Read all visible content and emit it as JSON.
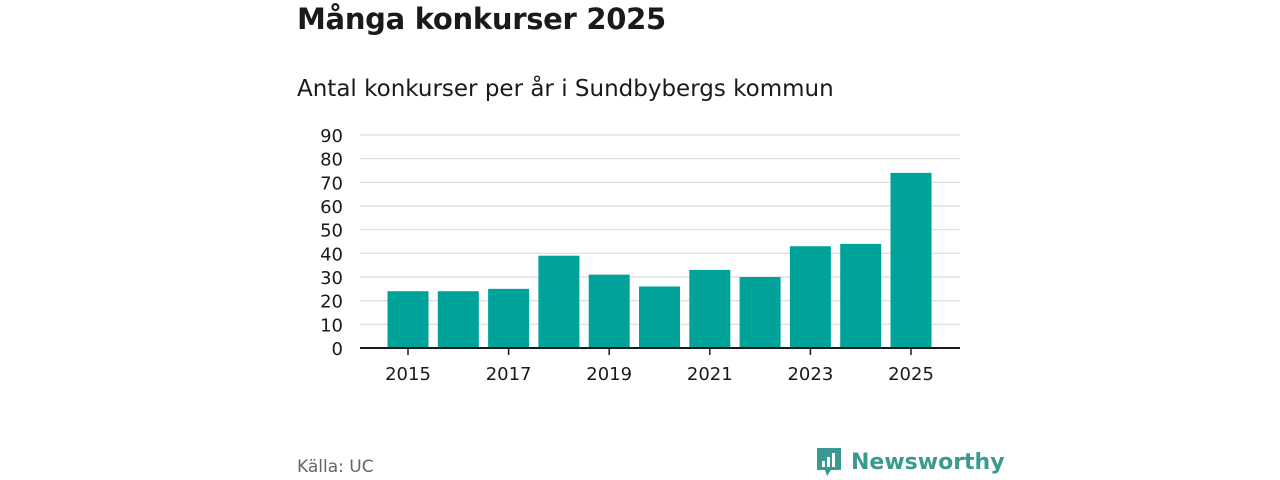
{
  "title": "Många konkurser 2025",
  "subtitle": "Antal konkurser per år i Sundbybergs kommun",
  "source": "Källa: UC",
  "brand": {
    "name": "Newsworthy",
    "logo_icon": "newsworthy-logo-icon"
  },
  "colors": {
    "bar": "#00a39a",
    "grid": "#d9d9d9",
    "axis": "#1a1a1a",
    "brand": "#3a9a92"
  },
  "chart_data": {
    "type": "bar",
    "categories": [
      "2015",
      "2016",
      "2017",
      "2018",
      "2019",
      "2020",
      "2021",
      "2022",
      "2023",
      "2024",
      "2025"
    ],
    "values": [
      24,
      24,
      25,
      39,
      31,
      26,
      33,
      30,
      43,
      44,
      74
    ],
    "x_tick_labels": [
      "2015",
      "",
      "2017",
      "",
      "2019",
      "",
      "2021",
      "",
      "2023",
      "",
      "2025"
    ],
    "y_ticks": [
      0,
      10,
      20,
      30,
      40,
      50,
      60,
      70,
      80,
      90
    ],
    "ylim": [
      0,
      90
    ],
    "grid": true,
    "title": "Många konkurser 2025",
    "subtitle": "Antal konkurser per år i Sundbybergs kommun",
    "xlabel": "",
    "ylabel": ""
  }
}
